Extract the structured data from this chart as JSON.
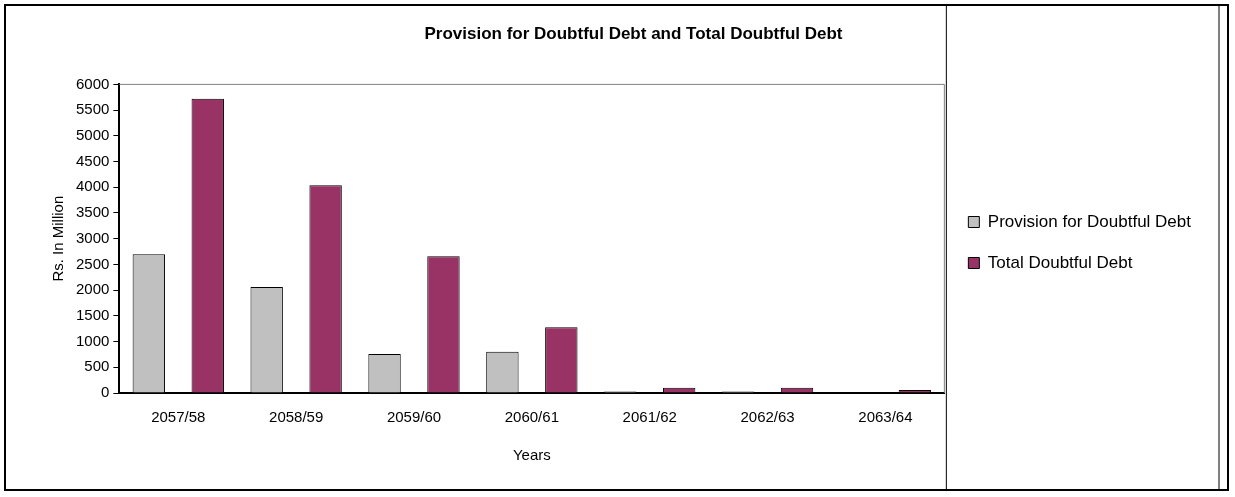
{
  "chart_data": {
    "type": "bar",
    "title": "Provision for Doubtful Debt and Total Doubtful Debt",
    "xlabel": "Years",
    "ylabel": "Rs. In Million",
    "categories": [
      "2057/58",
      "2058/59",
      "2059/60",
      "2060/61",
      "2061/62",
      "2062/63",
      "2063/64"
    ],
    "series": [
      {
        "name": "Provision for Doubtful Debt",
        "color": "#c0c0c0",
        "values": [
          2700,
          2060,
          760,
          800,
          30,
          30,
          0
        ]
      },
      {
        "name": "Total Doubtful Debt",
        "color": "#993366",
        "values": [
          5720,
          4040,
          2660,
          1280,
          100,
          100,
          60
        ]
      }
    ],
    "ylim": [
      0,
      6000
    ],
    "yticks": [
      0,
      500,
      1000,
      1500,
      2000,
      2500,
      3000,
      3500,
      4000,
      4500,
      5000,
      5500,
      6000
    ],
    "grid": false,
    "legend": "right"
  }
}
